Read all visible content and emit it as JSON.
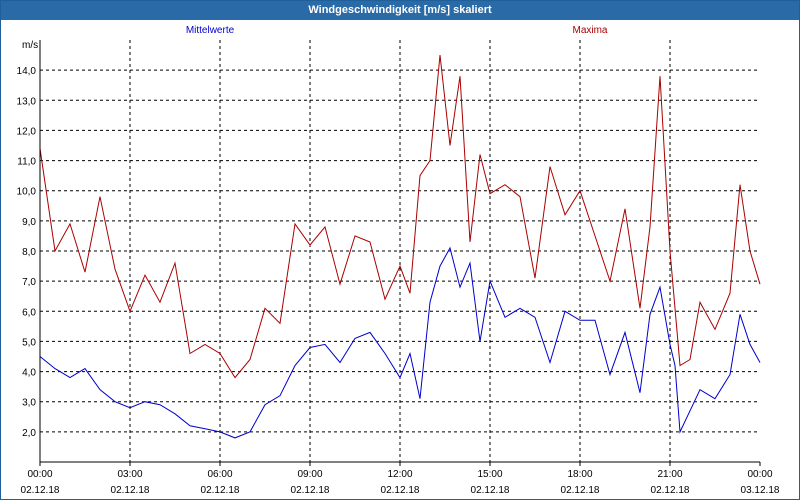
{
  "window": {
    "title": "Windgeschwindigkeit [m/s] skaliert"
  },
  "chart_data": {
    "type": "line",
    "ylabel": "m/s",
    "ylim": [
      1.0,
      15.0
    ],
    "xlim": [
      "2018-12-02 00:00",
      "2018-12-03 00:00"
    ],
    "grid": true,
    "yticks": [
      "2,0",
      "3,0",
      "4,0",
      "5,0",
      "6,0",
      "7,0",
      "8,0",
      "9,0",
      "10,0",
      "11,0",
      "12,0",
      "13,0",
      "14,0"
    ],
    "ytick_values": [
      2,
      3,
      4,
      5,
      6,
      7,
      8,
      9,
      10,
      11,
      12,
      13,
      14
    ],
    "xticks": [
      {
        "time": "00:00",
        "date": "02.12.18"
      },
      {
        "time": "03:00",
        "date": "02.12.18"
      },
      {
        "time": "06:00",
        "date": "02.12.18"
      },
      {
        "time": "09:00",
        "date": "02.12.18"
      },
      {
        "time": "12:00",
        "date": "02.12.18"
      },
      {
        "time": "15:00",
        "date": "02.12.18"
      },
      {
        "time": "18:00",
        "date": "02.12.18"
      },
      {
        "time": "21:00",
        "date": "02.12.18"
      },
      {
        "time": "00:00",
        "date": "03.12.18"
      }
    ],
    "xtick_hours": [
      0,
      3,
      6,
      9,
      12,
      15,
      18,
      21,
      24
    ],
    "series": [
      {
        "name": "Mittelwerte",
        "color": "#0000cc",
        "x": [
          "00:00",
          "00:30",
          "01:00",
          "01:30",
          "02:00",
          "02:30",
          "03:00",
          "03:30",
          "04:00",
          "04:30",
          "05:00",
          "05:30",
          "06:00",
          "06:30",
          "07:00",
          "07:30",
          "08:00",
          "08:30",
          "09:00",
          "09:30",
          "10:00",
          "10:30",
          "11:00",
          "11:30",
          "12:00",
          "12:20",
          "12:40",
          "13:00",
          "13:20",
          "13:40",
          "14:00",
          "14:20",
          "14:40",
          "15:00",
          "15:30",
          "16:00",
          "16:30",
          "17:00",
          "17:30",
          "18:00",
          "18:30",
          "19:00",
          "19:30",
          "20:00",
          "20:20",
          "20:40",
          "21:00",
          "21:10",
          "21:20",
          "21:40",
          "22:00",
          "22:30",
          "23:00",
          "23:20",
          "23:40",
          "24:00"
        ],
        "values": [
          4.5,
          4.1,
          3.8,
          4.1,
          3.4,
          3.0,
          2.8,
          3.0,
          2.9,
          2.6,
          2.2,
          2.1,
          2.0,
          1.8,
          2.0,
          2.9,
          3.2,
          4.2,
          4.8,
          4.9,
          4.3,
          5.1,
          5.3,
          4.6,
          3.8,
          4.6,
          3.1,
          6.3,
          7.5,
          8.1,
          6.8,
          7.6,
          5.0,
          7.0,
          5.8,
          6.1,
          5.8,
          4.3,
          6.0,
          5.7,
          5.7,
          3.9,
          5.3,
          3.3,
          5.9,
          6.8,
          4.9,
          4.2,
          2.0,
          2.7,
          3.4,
          3.1,
          3.9,
          5.9,
          4.9,
          4.3
        ]
      },
      {
        "name": "Maxima",
        "color": "#aa0000",
        "x": [
          "00:00",
          "00:30",
          "01:00",
          "01:30",
          "02:00",
          "02:30",
          "03:00",
          "03:30",
          "04:00",
          "04:30",
          "05:00",
          "05:30",
          "06:00",
          "06:30",
          "07:00",
          "07:30",
          "08:00",
          "08:30",
          "09:00",
          "09:30",
          "10:00",
          "10:30",
          "11:00",
          "11:30",
          "12:00",
          "12:20",
          "12:40",
          "13:00",
          "13:20",
          "13:40",
          "14:00",
          "14:20",
          "14:40",
          "15:00",
          "15:30",
          "16:00",
          "16:30",
          "17:00",
          "17:30",
          "18:00",
          "18:30",
          "19:00",
          "19:30",
          "20:00",
          "20:20",
          "20:40",
          "21:00",
          "21:10",
          "21:20",
          "21:40",
          "22:00",
          "22:30",
          "23:00",
          "23:20",
          "23:40",
          "24:00"
        ],
        "values": [
          11.4,
          8.0,
          8.9,
          7.3,
          9.8,
          7.4,
          6.0,
          7.2,
          6.3,
          7.6,
          4.6,
          4.9,
          4.6,
          3.8,
          4.4,
          6.1,
          5.6,
          8.9,
          8.2,
          8.8,
          6.9,
          8.5,
          8.3,
          6.4,
          7.5,
          6.6,
          10.5,
          11.0,
          14.5,
          11.5,
          13.8,
          8.3,
          11.2,
          9.9,
          10.2,
          9.8,
          7.1,
          10.8,
          9.2,
          10.0,
          8.5,
          7.0,
          9.4,
          6.1,
          8.8,
          13.8,
          8.0,
          6.1,
          4.2,
          4.4,
          6.3,
          5.4,
          6.6,
          10.2,
          8.0,
          6.9
        ]
      }
    ]
  }
}
